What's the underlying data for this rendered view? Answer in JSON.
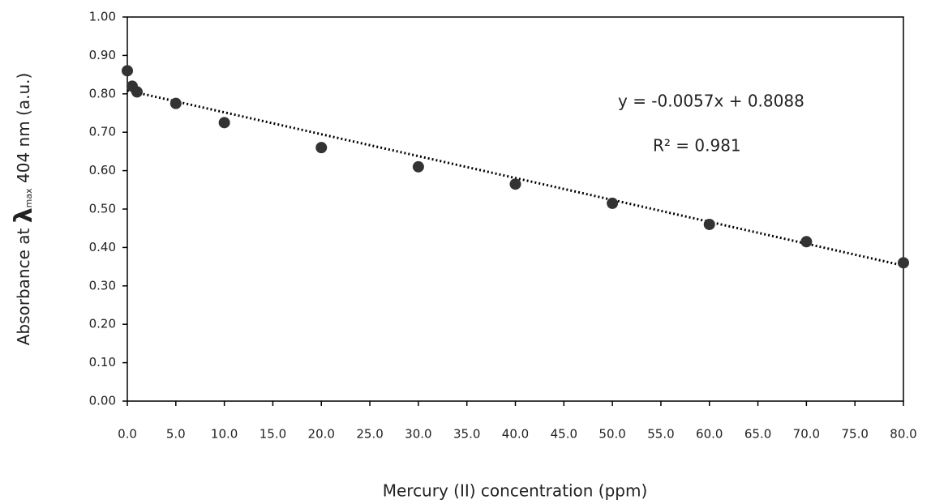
{
  "chart_data": {
    "type": "scatter",
    "x_label": "Mercury (II) concentration (ppm)",
    "y_label": [
      "Absorbance at ",
      "λ",
      "max",
      " 404 nm (a.u.)"
    ],
    "equation": "y = -0.0057x + 0.8088",
    "r_squared": "R² = 0.981",
    "series": [
      {
        "color": "#333333",
        "x": [
          0,
          0.5,
          1,
          5,
          10,
          20,
          30,
          40,
          50,
          60,
          70,
          80
        ],
        "values": [
          0.86,
          0.82,
          0.805,
          0.775,
          0.725,
          0.66,
          0.61,
          0.565,
          0.515,
          0.46,
          0.415,
          0.36
        ]
      }
    ],
    "trendline": {
      "color": "#000000",
      "x": [
        0,
        80
      ],
      "values": [
        0.8088,
        0.3528
      ]
    },
    "xlim": [
      0,
      80
    ],
    "xticks": [
      {
        "value": 0,
        "label": "0.0"
      },
      {
        "value": 5,
        "label": "5.0"
      },
      {
        "value": 10,
        "label": "10.0"
      },
      {
        "value": 15,
        "label": "15.0"
      },
      {
        "value": 20,
        "label": "20.0"
      },
      {
        "value": 25,
        "label": "25.0"
      },
      {
        "value": 30,
        "label": "30.0"
      },
      {
        "value": 35,
        "label": "35.0"
      },
      {
        "value": 40,
        "label": "40.0"
      },
      {
        "value": 45,
        "label": "45.0"
      },
      {
        "value": 50,
        "label": "50.0"
      },
      {
        "value": 55,
        "label": "55.0"
      },
      {
        "value": 60,
        "label": "60.0"
      },
      {
        "value": 65,
        "label": "65.0"
      },
      {
        "value": 70,
        "label": "70.0"
      },
      {
        "value": 75,
        "label": "75.0"
      },
      {
        "value": 80,
        "label": "80.0"
      }
    ],
    "ylim": [
      0,
      1
    ],
    "yticks": [
      {
        "value": 0,
        "label": "0.00"
      },
      {
        "value": 0.1,
        "label": "0.10"
      },
      {
        "value": 0.2,
        "label": "0.20"
      },
      {
        "value": 0.3,
        "label": "0.30"
      },
      {
        "value": 0.4,
        "label": "0.40"
      },
      {
        "value": 0.5,
        "label": "0.50"
      },
      {
        "value": 0.6,
        "label": "0.60"
      },
      {
        "value": 0.7,
        "label": "0.70"
      },
      {
        "value": 0.8,
        "label": "0.80"
      },
      {
        "value": 0.9,
        "label": "0.90"
      },
      {
        "value": 1,
        "label": "1.00"
      }
    ],
    "grid": false
  }
}
